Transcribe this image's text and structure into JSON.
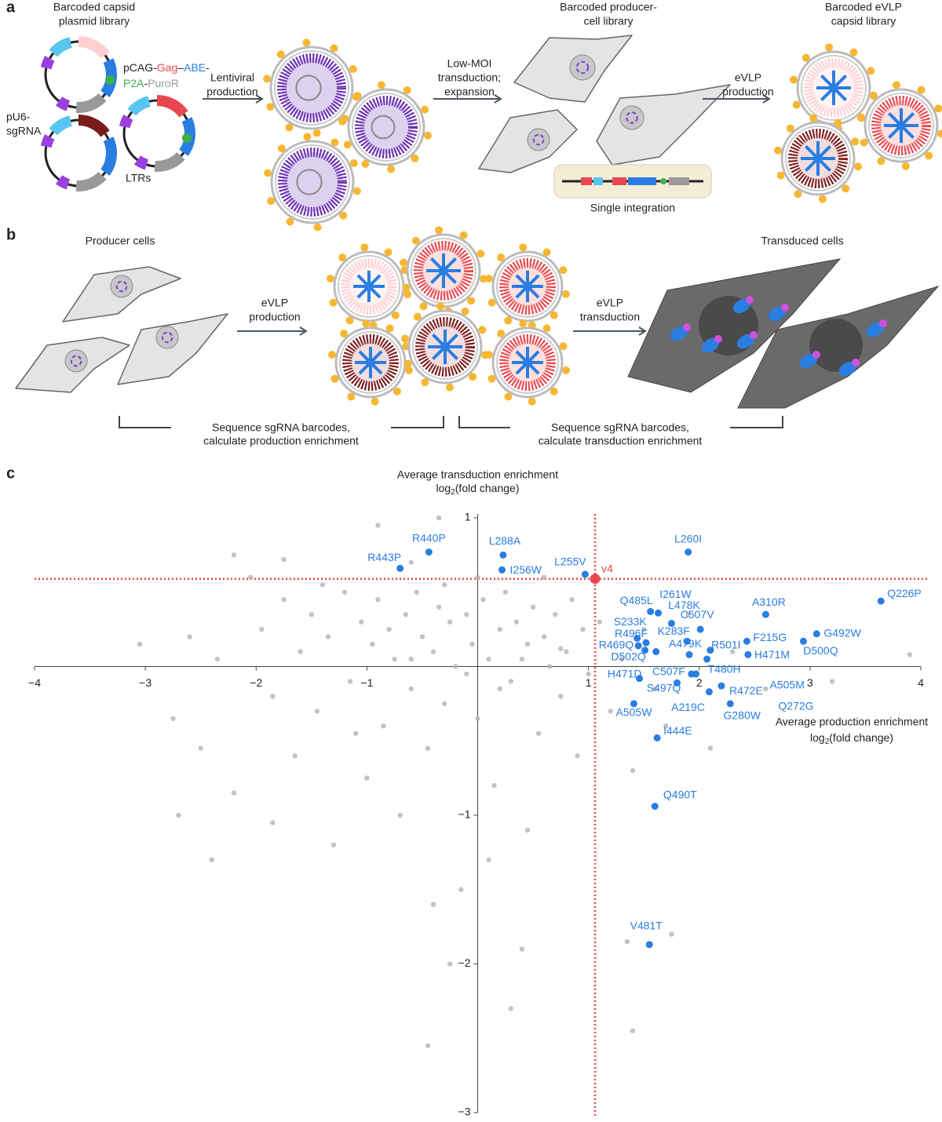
{
  "panel_a": {
    "letter": "a",
    "library_title": [
      "Barcoded capsid",
      "plasmid library"
    ],
    "construct": {
      "prefix": "pCAG-",
      "gag": "Gag",
      "dash1": "–",
      "abe": "ABE",
      "dash2": "-",
      "p2a": "P2A",
      "dash3": "-",
      "puro": "PuroR"
    },
    "u6": "pU6-",
    "sgrna": "sgRNA",
    "ltrs": "LTRs",
    "step1": [
      "Lentiviral",
      "production"
    ],
    "step2": [
      "Low-MOI",
      "transduction;",
      "expansion"
    ],
    "producer_title": [
      "Barcoded producer-",
      "cell library"
    ],
    "step3": [
      "eVLP",
      "production"
    ],
    "evlp_title": [
      "Barcoded eVLP",
      "capsid library"
    ],
    "integration": "Single integration"
  },
  "panel_b": {
    "letter": "b",
    "producer": "Producer cells",
    "step1": [
      "eVLP",
      "production"
    ],
    "step2": [
      "eVLP",
      "transduction"
    ],
    "transduced": "Transduced cells",
    "seq1": [
      "Sequence sgRNA barcodes,",
      "calculate production enrichment"
    ],
    "seq2": [
      "Sequence sgRNA barcodes,",
      "calculate transduction enrichment"
    ]
  },
  "chart_data": {
    "type": "scatter",
    "letter": "c",
    "ylabel": {
      "line1": "Average transduction enrichment",
      "pre": "log",
      "sub": "2",
      "post": "(fold change)"
    },
    "xlabel": {
      "line1": "Average production enrichment",
      "pre": "log",
      "sub": "2",
      "post": "(fold change)"
    },
    "xlim": [
      -4,
      4
    ],
    "ylim": [
      -3,
      1
    ],
    "xticks": [
      {
        "value": -4,
        "label": "−4"
      },
      {
        "value": -3,
        "label": "−3"
      },
      {
        "value": -2,
        "label": "−2"
      },
      {
        "value": -1,
        "label": "−1"
      },
      1,
      2,
      3,
      4
    ],
    "yticks": [
      1,
      {
        "value": -1,
        "label": "−1"
      },
      {
        "value": -2,
        "label": "−2"
      },
      {
        "value": -3,
        "label": "−3"
      }
    ],
    "reference_lines": {
      "x": 1.06,
      "y": 0.59,
      "color": "#e8474f"
    },
    "series": [
      {
        "color": "#b4b4b4",
        "x": [
          -3.05,
          -2.75,
          -2.6,
          -2.5,
          -2.35,
          -2.2,
          -2.05,
          -1.95,
          -1.85,
          -1.75,
          -1.65,
          -1.6,
          -1.5,
          -1.45,
          -1.35,
          -1.3,
          -1.2,
          -1.15,
          -1.05,
          -1.0,
          -0.95,
          -0.9,
          -0.85,
          -0.8,
          -0.75,
          -0.7,
          -0.65,
          -0.6,
          -0.55,
          -0.5,
          -0.45,
          -0.4,
          -0.35,
          -0.3,
          -0.25,
          -0.2,
          -0.15,
          -0.1,
          -0.05,
          0.0,
          0.05,
          0.1,
          0.15,
          0.2,
          0.25,
          0.3,
          0.35,
          0.4,
          0.45,
          0.5,
          0.55,
          0.6,
          0.65,
          0.7,
          0.75,
          0.8,
          0.85,
          0.9,
          0.95,
          1.0,
          1.1,
          1.2,
          1.3,
          1.4,
          1.5,
          1.7,
          1.9,
          2.1,
          2.3,
          2.6,
          3.2,
          3.9,
          -0.9,
          -0.35,
          -1.75,
          -2.2,
          0.1,
          -0.4,
          0.45,
          -0.25,
          0.3,
          -0.45,
          -1.85,
          -2.7,
          -2.4,
          1.35,
          1.75,
          1.4,
          -0.6,
          0.6,
          -1.4,
          0.0,
          0.2,
          -0.1,
          0.4,
          -0.6,
          0.75,
          -1.1,
          1.6,
          -0.3
        ],
        "y": [
          0.15,
          -0.35,
          0.2,
          -0.55,
          0.05,
          -0.85,
          0.6,
          0.25,
          -0.2,
          0.45,
          -0.6,
          0.1,
          0.35,
          -0.3,
          0.2,
          -1.2,
          0.5,
          -0.1,
          0.3,
          -0.75,
          0.15,
          0.45,
          -0.4,
          0.25,
          0.05,
          -1.0,
          0.35,
          -0.15,
          0.5,
          0.2,
          -0.55,
          0.1,
          0.4,
          -0.25,
          0.3,
          0.0,
          -1.5,
          0.35,
          0.15,
          -0.35,
          0.45,
          0.05,
          -0.8,
          0.25,
          0.5,
          -0.1,
          0.3,
          -1.9,
          0.15,
          0.4,
          -0.45,
          0.2,
          0.0,
          0.35,
          -0.2,
          0.1,
          0.45,
          -0.6,
          0.25,
          -0.05,
          0.3,
          -0.3,
          0.05,
          -0.7,
          0.25,
          -0.4,
          0.35,
          -0.55,
          0.1,
          -0.15,
          -0.1,
          0.08,
          0.95,
          1.0,
          0.72,
          0.75,
          -1.3,
          -1.6,
          -1.1,
          -2.0,
          -2.3,
          -2.55,
          -1.05,
          -1.0,
          -1.3,
          -1.85,
          -1.8,
          -2.45,
          0.7,
          0.6,
          0.55,
          0.6,
          -0.15,
          -0.05,
          0.05,
          0.05,
          0.12,
          -0.45,
          -0.15,
          0.55
        ]
      },
      {
        "color": "#2a7de1",
        "labels": [
          "R443P",
          "R440P",
          "L288A",
          "I256W",
          "L255V",
          "L260I",
          "Q226P",
          "Q485L",
          "I261W",
          "L478K",
          "C507V",
          "A310R",
          "S233K",
          "R501I",
          "R496F",
          "K283F",
          "F215G",
          "G492W",
          "R469Q",
          "D502Q",
          "A479K",
          "T480H",
          "H471M",
          "D500Q",
          "H471D",
          "C507F",
          "A505M",
          "S497Q",
          "R472E",
          "Q272G",
          "A219C",
          "A505W",
          "G280W",
          "I444E",
          "Q490T",
          "V481T"
        ],
        "x": [
          -0.7,
          -0.44,
          0.23,
          0.22,
          0.97,
          1.9,
          3.64,
          1.56,
          1.63,
          1.75,
          2.01,
          2.6,
          1.44,
          2.1,
          1.52,
          1.89,
          2.43,
          3.06,
          1.45,
          1.51,
          1.91,
          2.07,
          2.44,
          2.94,
          1.61,
          1.93,
          1.97,
          1.46,
          2.2,
          2.09,
          1.8,
          1.41,
          2.28,
          1.62,
          1.6,
          1.55
        ],
        "y": [
          0.66,
          0.77,
          0.75,
          0.65,
          0.62,
          0.77,
          0.44,
          0.37,
          0.36,
          0.29,
          0.25,
          0.35,
          0.19,
          0.11,
          0.16,
          0.17,
          0.17,
          0.22,
          0.14,
          0.11,
          0.08,
          0.05,
          0.08,
          0.17,
          0.1,
          -0.05,
          -0.05,
          -0.08,
          -0.13,
          -0.17,
          -0.11,
          -0.25,
          -0.25,
          -0.48,
          -0.94,
          -1.87
        ]
      },
      {
        "color": "#e8474f",
        "labels": [
          "v4"
        ],
        "x": [
          1.06
        ],
        "y": [
          0.59
        ]
      }
    ]
  }
}
